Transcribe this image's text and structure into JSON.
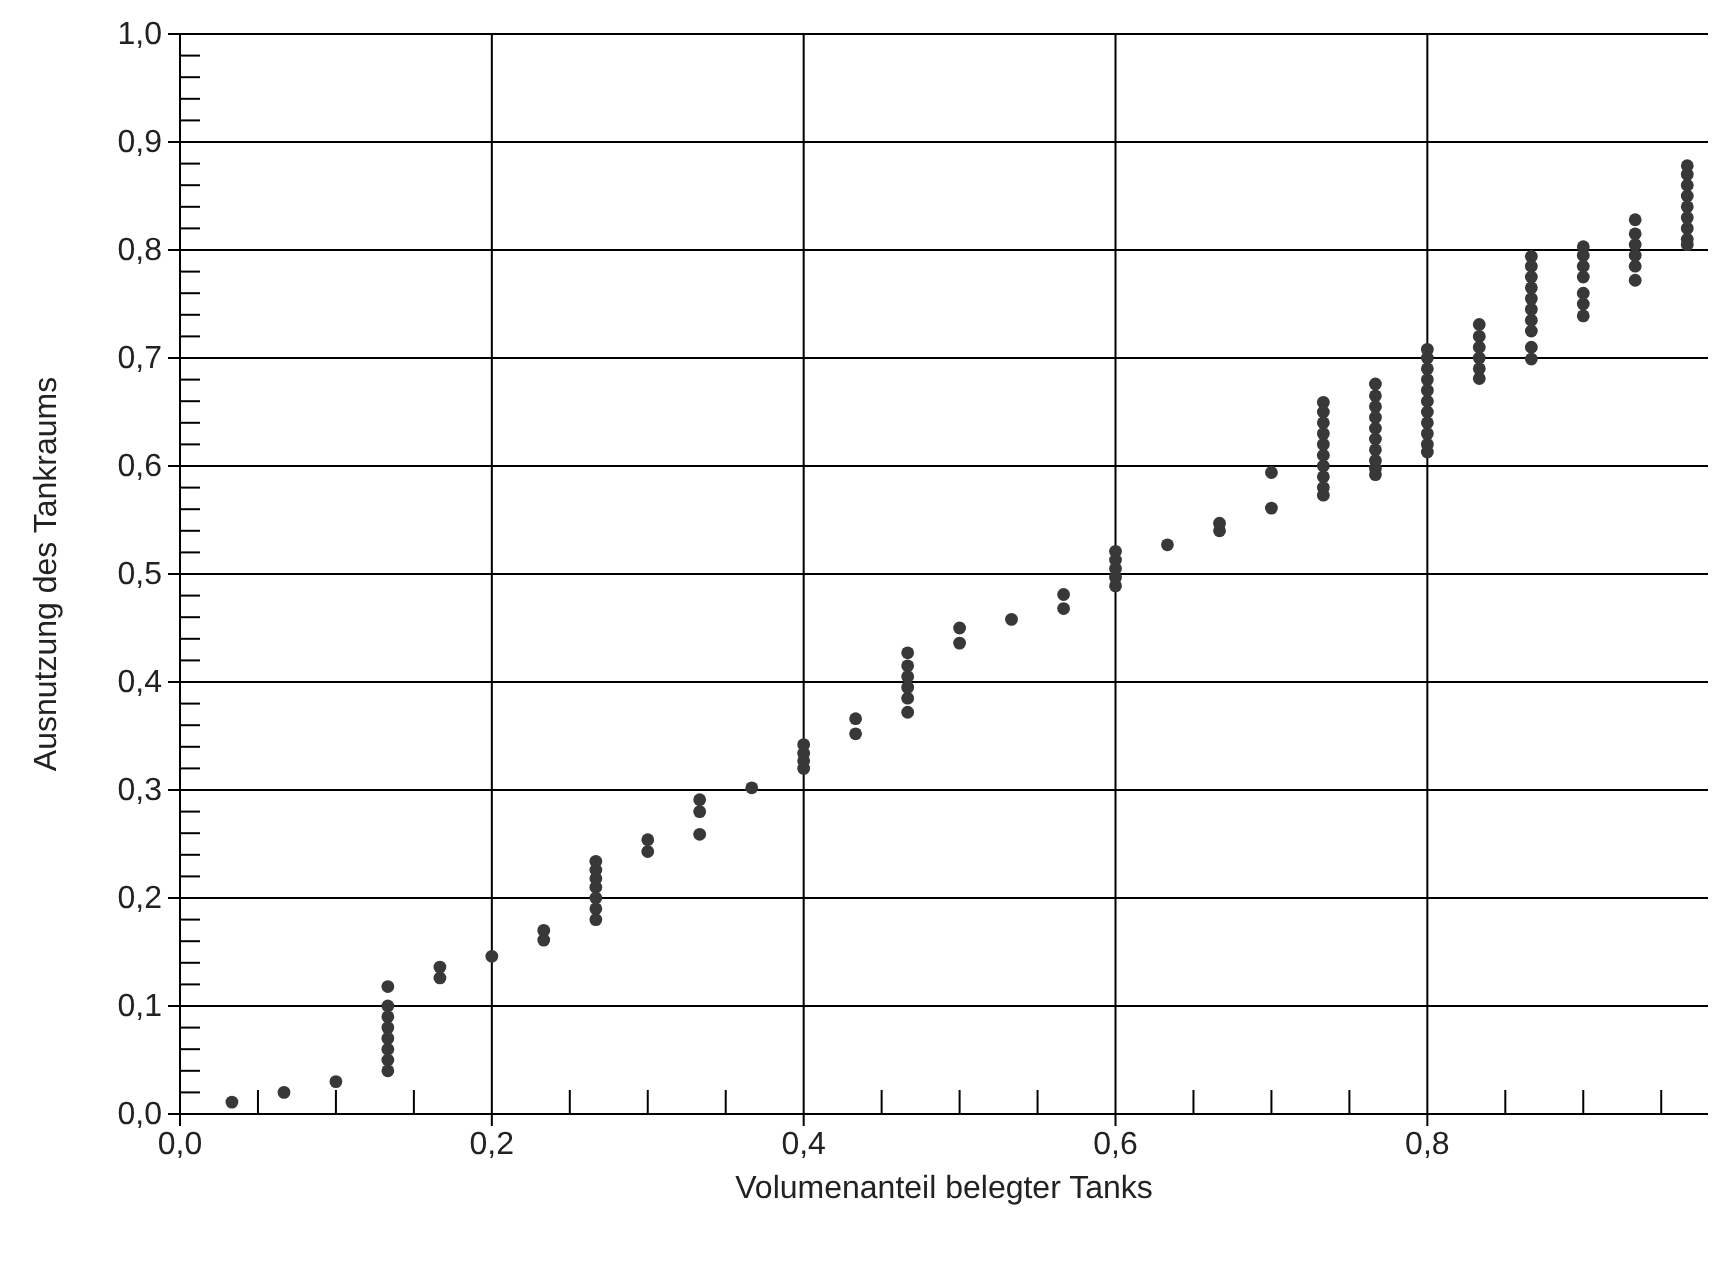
{
  "chart_data": {
    "type": "scatter",
    "xlabel": "Volumenanteil belegter Tanks",
    "ylabel": "Ausnutzung des Tankraums",
    "xlim": [
      0,
      0.98
    ],
    "ylim": [
      0,
      1.0
    ],
    "xticks": [
      {
        "value": 0,
        "label": "0,0"
      },
      {
        "value": 0.05,
        "label": null
      },
      {
        "value": 0.1,
        "label": null
      },
      {
        "value": 0.15,
        "label": null
      },
      {
        "value": 0.2,
        "label": "0,2"
      },
      {
        "value": 0.25,
        "label": null
      },
      {
        "value": 0.3,
        "label": null
      },
      {
        "value": 0.35,
        "label": null
      },
      {
        "value": 0.4,
        "label": "0,4"
      },
      {
        "value": 0.45,
        "label": null
      },
      {
        "value": 0.5,
        "label": null
      },
      {
        "value": 0.55,
        "label": null
      },
      {
        "value": 0.6,
        "label": "0,6"
      },
      {
        "value": 0.65,
        "label": null
      },
      {
        "value": 0.7,
        "label": null
      },
      {
        "value": 0.75,
        "label": null
      },
      {
        "value": 0.8,
        "label": "0,8"
      },
      {
        "value": 0.85,
        "label": null
      },
      {
        "value": 0.9,
        "label": null
      },
      {
        "value": 0.95,
        "label": null
      }
    ],
    "yticks": [
      {
        "value": 0,
        "label": "0,0"
      },
      {
        "value": 0.02,
        "label": null
      },
      {
        "value": 0.04,
        "label": null
      },
      {
        "value": 0.06,
        "label": null
      },
      {
        "value": 0.08,
        "label": null
      },
      {
        "value": 0.1,
        "label": "0,1"
      },
      {
        "value": 0.12,
        "label": null
      },
      {
        "value": 0.14,
        "label": null
      },
      {
        "value": 0.16,
        "label": null
      },
      {
        "value": 0.18,
        "label": null
      },
      {
        "value": 0.2,
        "label": "0,2"
      },
      {
        "value": 0.22,
        "label": null
      },
      {
        "value": 0.24,
        "label": null
      },
      {
        "value": 0.26,
        "label": null
      },
      {
        "value": 0.28,
        "label": null
      },
      {
        "value": 0.3,
        "label": "0,3"
      },
      {
        "value": 0.32,
        "label": null
      },
      {
        "value": 0.34,
        "label": null
      },
      {
        "value": 0.36,
        "label": null
      },
      {
        "value": 0.38,
        "label": null
      },
      {
        "value": 0.4,
        "label": "0,4"
      },
      {
        "value": 0.42,
        "label": null
      },
      {
        "value": 0.44,
        "label": null
      },
      {
        "value": 0.46,
        "label": null
      },
      {
        "value": 0.48,
        "label": null
      },
      {
        "value": 0.5,
        "label": "0,5"
      },
      {
        "value": 0.52,
        "label": null
      },
      {
        "value": 0.54,
        "label": null
      },
      {
        "value": 0.56,
        "label": null
      },
      {
        "value": 0.58,
        "label": null
      },
      {
        "value": 0.6,
        "label": "0,6"
      },
      {
        "value": 0.62,
        "label": null
      },
      {
        "value": 0.64,
        "label": null
      },
      {
        "value": 0.66,
        "label": null
      },
      {
        "value": 0.68,
        "label": null
      },
      {
        "value": 0.7,
        "label": "0,7"
      },
      {
        "value": 0.72,
        "label": null
      },
      {
        "value": 0.74,
        "label": null
      },
      {
        "value": 0.76,
        "label": null
      },
      {
        "value": 0.78,
        "label": null
      },
      {
        "value": 0.8,
        "label": "0,8"
      },
      {
        "value": 0.82,
        "label": null
      },
      {
        "value": 0.84,
        "label": null
      },
      {
        "value": 0.86,
        "label": null
      },
      {
        "value": 0.88,
        "label": null
      },
      {
        "value": 0.9,
        "label": "0,9"
      },
      {
        "value": 0.92,
        "label": null
      },
      {
        "value": 0.94,
        "label": null
      },
      {
        "value": 0.96,
        "label": null
      },
      {
        "value": 0.98,
        "label": null
      },
      {
        "value": 1.0,
        "label": "1,0"
      }
    ],
    "grid": true,
    "marker": "circle",
    "series": [
      {
        "color": "#383838",
        "x": [
          0.0333,
          0.0667,
          0.1,
          0.1333,
          0.1333,
          0.1333,
          0.1333,
          0.1333,
          0.1333,
          0.1333,
          0.1333,
          0.1667,
          0.1667,
          0.2,
          0.2333,
          0.2333,
          0.2667,
          0.2667,
          0.2667,
          0.2667,
          0.2667,
          0.2667,
          0.2667,
          0.3,
          0.3,
          0.3333,
          0.3333,
          0.3333,
          0.3667,
          0.4,
          0.4,
          0.4,
          0.4,
          0.4333,
          0.4333,
          0.4667,
          0.4667,
          0.4667,
          0.4667,
          0.4667,
          0.4667,
          0.5,
          0.5,
          0.5333,
          0.5667,
          0.5667,
          0.6,
          0.6,
          0.6,
          0.6,
          0.6,
          0.6333,
          0.6667,
          0.6667,
          0.7,
          0.7,
          0.7333,
          0.7333,
          0.7333,
          0.7333,
          0.7333,
          0.7333,
          0.7333,
          0.7333,
          0.7333,
          0.7333,
          0.7667,
          0.7667,
          0.7667,
          0.7667,
          0.7667,
          0.7667,
          0.7667,
          0.7667,
          0.7667,
          0.7667,
          0.8,
          0.8,
          0.8,
          0.8,
          0.8,
          0.8,
          0.8,
          0.8,
          0.8,
          0.8,
          0.8,
          0.8333,
          0.8333,
          0.8333,
          0.8333,
          0.8333,
          0.8333,
          0.8667,
          0.8667,
          0.8667,
          0.8667,
          0.8667,
          0.8667,
          0.8667,
          0.8667,
          0.8667,
          0.8667,
          0.9,
          0.9,
          0.9,
          0.9,
          0.9,
          0.9,
          0.9,
          0.9333,
          0.9333,
          0.9333,
          0.9333,
          0.9333,
          0.9333,
          0.9667,
          0.9667,
          0.9667,
          0.9667,
          0.9667,
          0.9667,
          0.9667,
          0.9667,
          0.9667
        ],
        "values": [
          0.011,
          0.02,
          0.03,
          0.118,
          0.1,
          0.09,
          0.08,
          0.07,
          0.06,
          0.05,
          0.04,
          0.136,
          0.126,
          0.146,
          0.17,
          0.161,
          0.234,
          0.226,
          0.218,
          0.21,
          0.2,
          0.19,
          0.18,
          0.254,
          0.243,
          0.291,
          0.28,
          0.259,
          0.302,
          0.342,
          0.334,
          0.327,
          0.32,
          0.366,
          0.352,
          0.427,
          0.415,
          0.405,
          0.395,
          0.385,
          0.372,
          0.45,
          0.436,
          0.458,
          0.481,
          0.468,
          0.521,
          0.513,
          0.505,
          0.497,
          0.489,
          0.527,
          0.547,
          0.54,
          0.594,
          0.561,
          0.659,
          0.65,
          0.64,
          0.63,
          0.62,
          0.61,
          0.6,
          0.59,
          0.58,
          0.573,
          0.676,
          0.665,
          0.655,
          0.645,
          0.635,
          0.625,
          0.615,
          0.605,
          0.598,
          0.592,
          0.708,
          0.7,
          0.69,
          0.68,
          0.67,
          0.66,
          0.65,
          0.64,
          0.63,
          0.62,
          0.613,
          0.731,
          0.72,
          0.71,
          0.7,
          0.69,
          0.681,
          0.794,
          0.785,
          0.775,
          0.765,
          0.755,
          0.745,
          0.735,
          0.725,
          0.71,
          0.699,
          0.803,
          0.795,
          0.785,
          0.775,
          0.76,
          0.75,
          0.739,
          0.828,
          0.815,
          0.805,
          0.795,
          0.785,
          0.772,
          0.878,
          0.87,
          0.86,
          0.85,
          0.84,
          0.83,
          0.82,
          0.81,
          0.805
        ]
      }
    ]
  }
}
